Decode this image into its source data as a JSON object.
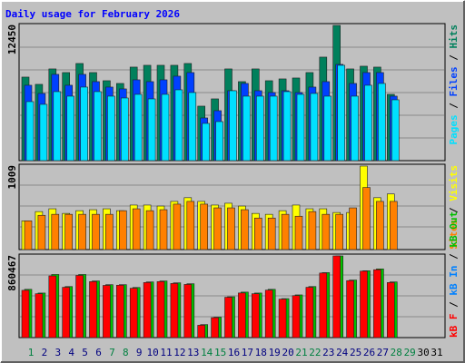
{
  "chart_data": [
    {
      "type": "bar",
      "title": "Daily usage for February 2026",
      "legend_separator": " / ",
      "ylim": [
        0,
        12450
      ],
      "yticks": [
        12450
      ],
      "series": [
        {
          "name": "Hits",
          "color": "#00805c",
          "values": [
            7691,
            7022,
            8444,
            8109,
            8945,
            8109,
            7357,
            7106,
            8611,
            8778,
            8778,
            8778,
            8945,
            5016,
            5685,
            8444,
            7273,
            8444,
            7357,
            7524,
            7608,
            8109,
            9530,
            12450,
            8444,
            8694,
            8611,
            6103,
            null,
            null,
            null
          ]
        },
        {
          "name": "Files",
          "color": "#0040ff",
          "values": [
            6939,
            6186,
            7942,
            6939,
            7942,
            7273,
            6772,
            6604,
            7440,
            7273,
            7440,
            7775,
            8109,
            3929,
            4598,
            6437,
            7106,
            6437,
            6270,
            6437,
            6270,
            6772,
            7273,
            8862,
            7106,
            8109,
            8109,
            5936,
            null,
            null,
            null
          ]
        },
        {
          "name": "Pages",
          "color": "#00e0ff",
          "values": [
            5434,
            5183,
            6354,
            5936,
            6772,
            6354,
            5936,
            5768,
            6103,
            5685,
            6103,
            6521,
            6270,
            3428,
            3595,
            6437,
            5936,
            5936,
            5936,
            6354,
            6103,
            6186,
            5936,
            8778,
            5936,
            6939,
            7106,
            5601,
            null,
            null,
            null
          ]
        }
      ]
    },
    {
      "type": "bar",
      "legend_separator": " / ",
      "ylim": [
        0,
        1009
      ],
      "yticks": [
        1009
      ],
      "series": [
        {
          "name": "Visits",
          "color": "#ffff00",
          "values": [
            347,
            459,
            493,
            437,
            470,
            482,
            493,
            470,
            538,
            538,
            526,
            582,
            627,
            582,
            538,
            560,
            526,
            437,
            426,
            470,
            538,
            493,
            493,
            448,
            448,
            1009,
            627,
            672,
            null,
            null,
            null
          ]
        },
        {
          "name": "Sites",
          "color": "#ff8000",
          "values": [
            347,
            414,
            426,
            426,
            426,
            426,
            426,
            470,
            493,
            470,
            482,
            549,
            582,
            549,
            504,
            504,
            482,
            381,
            381,
            426,
            403,
            459,
            426,
            426,
            504,
            750,
            582,
            582,
            null,
            null,
            null
          ]
        }
      ]
    },
    {
      "type": "bar",
      "legend_separator": " / ",
      "ylim": [
        0,
        860467
      ],
      "yticks": [
        860467
      ],
      "categories": [
        "1",
        "2",
        "3",
        "4",
        "5",
        "6",
        "7",
        "8",
        "9",
        "10",
        "11",
        "12",
        "13",
        "14",
        "15",
        "16",
        "17",
        "18",
        "19",
        "20",
        "21",
        "22",
        "23",
        "24",
        "25",
        "26",
        "27",
        "28",
        "29",
        "30",
        "31"
      ],
      "category_colors": [
        "#008040",
        "#000080",
        "#000080",
        "#000080",
        "#000080",
        "#000080",
        "#008040",
        "#008040",
        "#000080",
        "#000080",
        "#000080",
        "#000080",
        "#000080",
        "#008040",
        "#008040",
        "#000080",
        "#000080",
        "#000080",
        "#000080",
        "#000080",
        "#008040",
        "#008040",
        "#000080",
        "#000080",
        "#000080",
        "#000080",
        "#000080",
        "#008040",
        "#008040",
        "#000000",
        "#000000"
      ],
      "series": [
        {
          "name": "kB Out",
          "color": "#00c000",
          "values": [
            508456,
            469344,
            664904,
            537790,
            664904,
            596458,
            557346,
            557346,
            528012,
            586680,
            596458,
            576902,
            567124,
            136892,
            215116,
            430232,
            479122,
            469344,
            508456,
            410676,
            449788,
            537790,
            684460,
            860467,
            606236,
            704016,
            723572,
            586680,
            null,
            null,
            null
          ]
        },
        {
          "name": "kB In",
          "color": "#0080ff",
          "values": [
            0,
            0,
            0,
            0,
            0,
            0,
            0,
            0,
            0,
            0,
            0,
            0,
            0,
            0,
            0,
            0,
            0,
            0,
            0,
            0,
            0,
            0,
            0,
            0,
            0,
            0,
            0,
            0,
            null,
            null,
            null
          ]
        },
        {
          "name": "kB F",
          "color": "#ff0000",
          "values": [
            498000,
            462000,
            650000,
            530000,
            655000,
            590000,
            550000,
            552000,
            520000,
            580000,
            590000,
            570000,
            560000,
            130000,
            210000,
            425000,
            470000,
            462000,
            500000,
            405000,
            442000,
            530000,
            680000,
            860467,
            600000,
            700000,
            715000,
            580000,
            null,
            null,
            null
          ]
        }
      ]
    }
  ]
}
